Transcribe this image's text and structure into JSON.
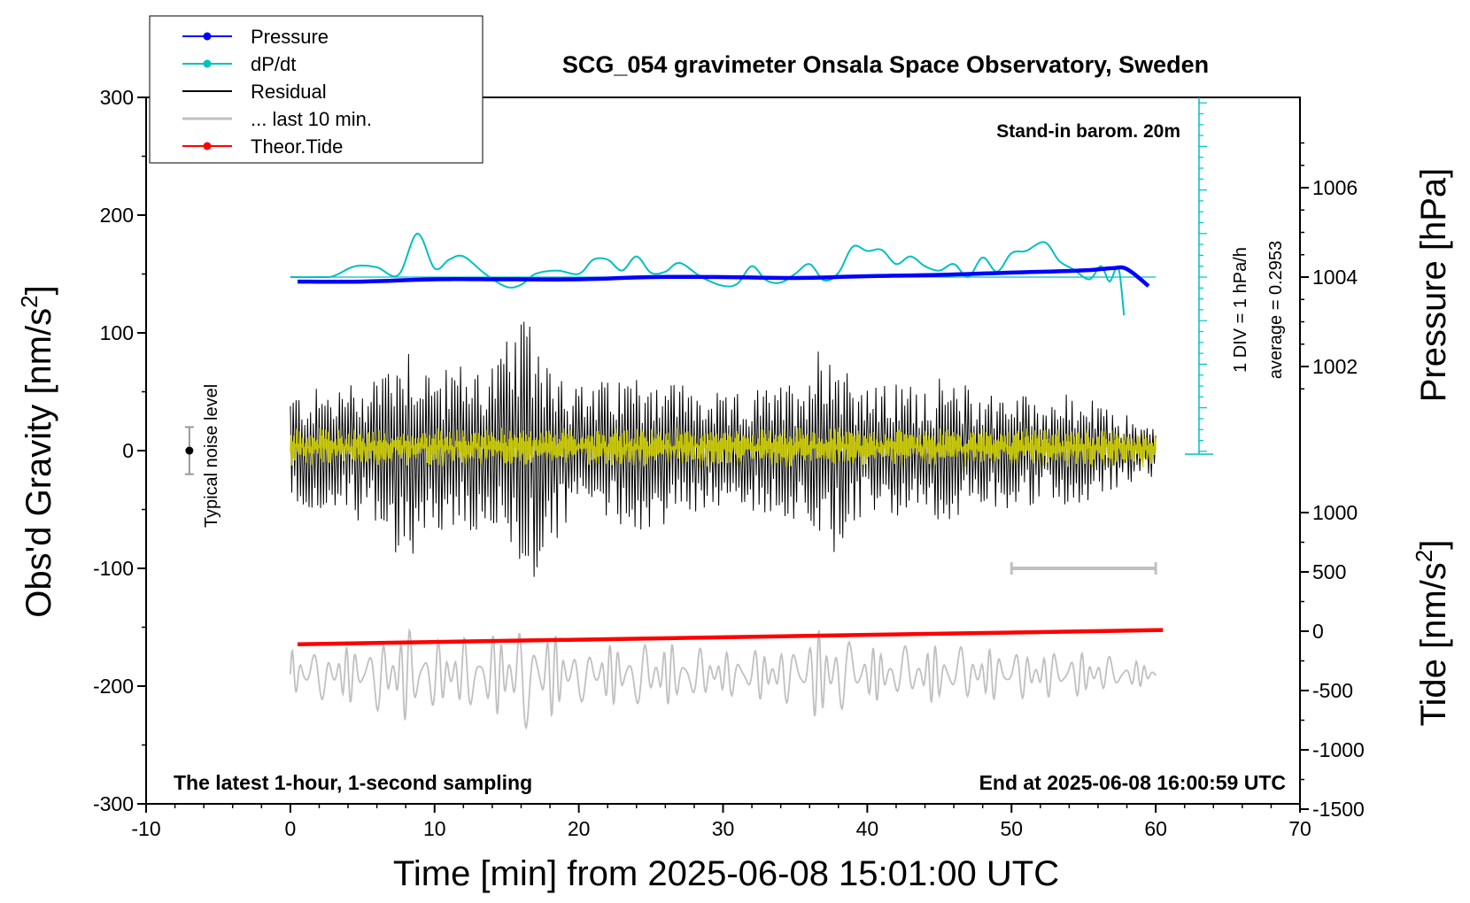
{
  "chart_data": {
    "type": "line",
    "title": "SCG_054 gravimeter Onsala Space Observatory, Sweden",
    "xlabel": "Time [min] from 2025-06-08 15:01:00 UTC",
    "ylabel_left_main": "Obs'd Gravity [nm/s",
    "ylabel_left_sup": "2",
    "ylabel_left_tail": "]",
    "ylabel_right_pressure": "Pressure [hPa]",
    "ylabel_right_tide_main": "Tide [nm/s",
    "ylabel_right_tide_sup": "2",
    "ylabel_right_tide_tail": "]",
    "xlim": [
      -10,
      70
    ],
    "ylim_gravity": [
      -300,
      300
    ],
    "pressure_ticks": [
      "1006",
      "1004",
      "1002"
    ],
    "tide_ticks": [
      "1000",
      "500",
      "0",
      "-500",
      "-1000",
      "-1500"
    ],
    "x_ticks": [
      "-10",
      "0",
      "10",
      "20",
      "30",
      "40",
      "50",
      "60",
      "70"
    ],
    "y_ticks": [
      "300",
      "200",
      "100",
      "0",
      "-100",
      "-200",
      "-300"
    ],
    "annotations": {
      "barometer": "Stand-in barom. 20m",
      "div_label": "1 DIV = 1 hPa/h",
      "average_label": "average = 0.2953",
      "noise_label": "Typical noise level",
      "bottom_left": "The latest 1-hour, 1-second sampling",
      "bottom_right": "End at 2025-06-08 16:00:59 UTC"
    },
    "legend": [
      {
        "label": "Pressure",
        "color": "#0000ff",
        "marker": true
      },
      {
        "label": "dP/dt",
        "color": "#00c0c0",
        "marker": true
      },
      {
        "label": "Residual",
        "color": "#000000",
        "marker": false
      },
      {
        "label": "... last 10 min.",
        "color": "#c0c0c0",
        "marker": false
      },
      {
        "label": "Theor.Tide",
        "color": "#ff0000",
        "marker": true
      }
    ],
    "series": [
      {
        "name": "Pressure",
        "color": "#0000ff",
        "unit": "hPa",
        "x": [
          0.5,
          5,
          10,
          15,
          20,
          25,
          30,
          35,
          40,
          45,
          50,
          55,
          57,
          58,
          59.5
        ],
        "values": [
          1003.9,
          1003.9,
          1003.95,
          1003.95,
          1003.95,
          1004.0,
          1004.0,
          1003.98,
          1004.02,
          1004.05,
          1004.1,
          1004.15,
          1004.2,
          1004.18,
          1003.8
        ]
      },
      {
        "name": "dP/dt",
        "color": "#00c0c0",
        "unit": "hPa/h",
        "x": [
          0,
          2,
          3,
          4.5,
          6,
          7.5,
          8.8,
          10,
          11,
          12,
          13.5,
          15,
          16,
          17,
          18.5,
          20,
          21,
          22,
          23,
          24,
          25,
          26,
          27,
          28.5,
          30,
          31,
          32,
          33,
          34,
          35,
          36,
          37,
          38,
          39,
          40,
          41,
          42,
          43,
          44,
          45,
          46,
          47,
          48,
          49,
          50,
          51,
          52.3,
          53.3,
          54.3,
          55.4,
          56.2,
          56.8,
          57.4,
          57.8
        ],
        "values": [
          0,
          0,
          0.1,
          1.0,
          0.9,
          0.2,
          4.0,
          0.8,
          1.6,
          1.9,
          0.3,
          -0.9,
          -0.7,
          0.3,
          0.6,
          0.3,
          1.6,
          1.6,
          0.6,
          1.9,
          0.4,
          0.5,
          1.3,
          0.0,
          -0.8,
          -0.6,
          1.0,
          -0.3,
          -0.5,
          0.3,
          1.2,
          -0.3,
          0.4,
          2.8,
          2.4,
          2.5,
          1.2,
          1.9,
          1.0,
          0.6,
          1.2,
          0.0,
          1.8,
          0.5,
          2.2,
          2.4,
          3.2,
          1.5,
          0.7,
          -0.2,
          1.0,
          -0.4,
          0.9,
          -3.5
        ]
      },
      {
        "name": "Residual",
        "color": "#000000",
        "unit": "nm/s2",
        "note": "1-second samples, oscillating between about -110 and 115",
        "envelope_x": [
          0,
          5,
          8,
          10,
          14,
          16.5,
          20,
          25,
          30,
          35,
          37,
          40,
          45,
          50,
          55,
          60
        ],
        "envelope_values": [
          50,
          60,
          98,
          70,
          80,
          114,
          55,
          70,
          45,
          60,
          101,
          55,
          60,
          50,
          45,
          20
        ]
      },
      {
        "name": "... last 10 min.",
        "color": "#c0c0c0",
        "unit": "nm/s2",
        "note": "last 10 minutes shown offset below, horizontal scale bar 50-60 min",
        "scale_bar_x": [
          50,
          60
        ],
        "scale_bar_y": -100
      },
      {
        "name": "Theor.Tide",
        "color": "#ff0000",
        "unit": "nm/s2",
        "x": [
          0.5,
          60.5
        ],
        "values": [
          -110,
          10
        ]
      }
    ]
  }
}
